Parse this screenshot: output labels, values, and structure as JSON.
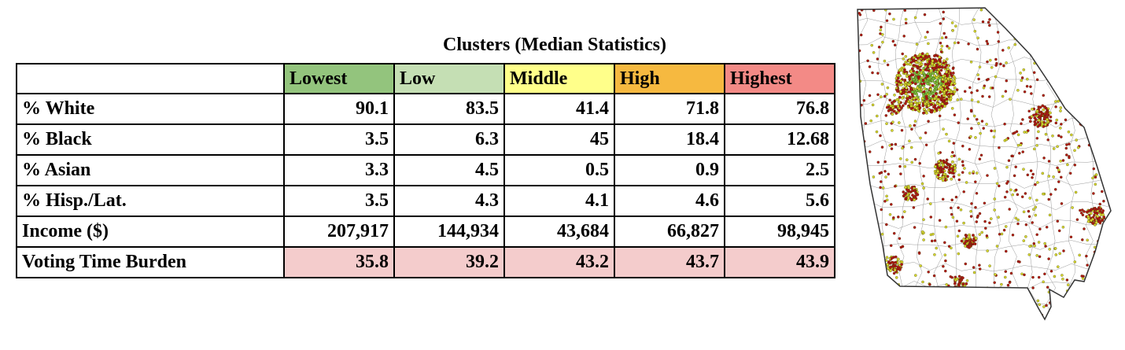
{
  "caption": "Clusters (Median Statistics)",
  "clusters": [
    {
      "label": "Lowest",
      "color": "#93c47d"
    },
    {
      "label": "Low",
      "color": "#c5dfb4"
    },
    {
      "label": "Middle",
      "color": "#ffff8a"
    },
    {
      "label": "High",
      "color": "#f6b940"
    },
    {
      "label": "Highest",
      "color": "#f38a86"
    }
  ],
  "rows": [
    {
      "label": "% White",
      "values": [
        "90.1",
        "83.5",
        "41.4",
        "71.8",
        "76.8"
      ]
    },
    {
      "label": "% Black",
      "values": [
        "3.5",
        "6.3",
        "45",
        "18.4",
        "12.68"
      ]
    },
    {
      "label": "% Asian",
      "values": [
        "3.3",
        "4.5",
        "0.5",
        "0.9",
        "2.5"
      ]
    },
    {
      "label": "% Hisp./Lat.",
      "values": [
        "3.5",
        "4.3",
        "4.1",
        "4.6",
        "5.6"
      ]
    },
    {
      "label": "Income ($)",
      "values": [
        "207,917",
        "144,934",
        "43,684",
        "66,827",
        "98,945"
      ]
    },
    {
      "label": "Voting Time Burden",
      "values": [
        "35.8",
        "39.2",
        "43.2",
        "43.7",
        "43.9"
      ]
    }
  ],
  "map": {
    "point_colors": [
      "#b01515",
      "#d6d630"
    ],
    "outline_color": "#333333"
  }
}
